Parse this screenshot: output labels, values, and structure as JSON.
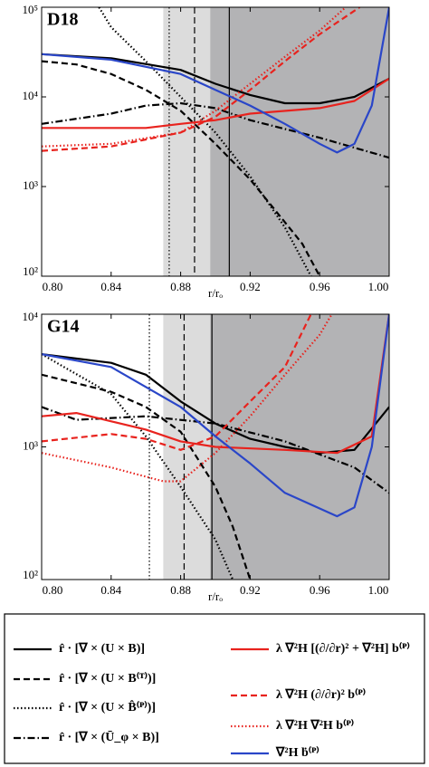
{
  "chart_data": [
    {
      "type": "line",
      "label": "D18",
      "xlabel": "r/rₒ",
      "log_y": true,
      "xlim": [
        0.8,
        1.0
      ],
      "ylim": [
        100,
        100000
      ],
      "xticks": [
        {
          "value": 0.8,
          "label": "0.80"
        },
        {
          "value": 0.84,
          "label": "0.84"
        },
        {
          "value": 0.88,
          "label": "0.88"
        },
        {
          "value": 0.92,
          "label": "0.92"
        },
        {
          "value": 0.96,
          "label": "0.96"
        },
        {
          "value": 1.0,
          "label": "1.00"
        }
      ],
      "yticks": [
        {
          "value": 100,
          "label": "10²"
        },
        {
          "value": 1000,
          "label": "10³"
        },
        {
          "value": 10000,
          "label": "10⁴"
        },
        {
          "value": 100000,
          "label": "10⁵"
        }
      ],
      "regions": [
        {
          "from": 0.87,
          "to": 0.897,
          "color": "#dcdcdc"
        },
        {
          "from": 0.897,
          "to": 1.0,
          "color": "#b3b3b5"
        }
      ],
      "vlines": [
        {
          "x": 0.8734,
          "style": "dotted"
        },
        {
          "x": 0.888,
          "style": "dashed"
        },
        {
          "x": 0.908,
          "style": "solid"
        }
      ],
      "series": [
        {
          "name": "r̂ · [∇ × (U × B)]",
          "style": "solid",
          "color": "#000000",
          "x": [
            0.8,
            0.84,
            0.88,
            0.9,
            0.92,
            0.94,
            0.96,
            0.98,
            1.0
          ],
          "values": [
            30000,
            27000,
            20000,
            14000,
            10500,
            8500,
            8500,
            10000,
            16000
          ]
        },
        {
          "name": "r̂ · [∇ × (U × B⁽ᵀ⁾)]",
          "style": "dashed",
          "color": "#000000",
          "x": [
            0.8,
            0.82,
            0.84,
            0.86,
            0.88,
            0.9,
            0.92,
            0.94,
            0.95,
            0.96
          ],
          "values": [
            25000,
            23000,
            18000,
            12000,
            7000,
            3000,
            1200,
            400,
            230,
            100
          ]
        },
        {
          "name": "r̂ · [∇ × (U × B̂⁽ᴾ⁾)]",
          "style": "dotted",
          "color": "#000000",
          "x": [
            0.833,
            0.84,
            0.86,
            0.88,
            0.9,
            0.92,
            0.94,
            0.955
          ],
          "values": [
            100000,
            60000,
            25000,
            10000,
            4000,
            1300,
            350,
            100
          ]
        },
        {
          "name": "r̂ · [∇ × (Ū_φ × B)]",
          "style": "dashdot",
          "color": "#000000",
          "x": [
            0.8,
            0.84,
            0.86,
            0.88,
            0.9,
            0.92,
            0.96,
            1.0
          ],
          "values": [
            5000,
            6500,
            8000,
            8500,
            7500,
            5500,
            3500,
            2100
          ]
        },
        {
          "name": "λ ∇²H [(∂/∂r)² + ∇²H] b⁽ᴾ⁾",
          "style": "solid",
          "color": "#e8231e",
          "x": [
            0.8,
            0.86,
            0.88,
            0.9,
            0.92,
            0.96,
            0.98,
            1.0
          ],
          "values": [
            4500,
            4500,
            5000,
            5500,
            6500,
            7500,
            9000,
            16000
          ]
        },
        {
          "name": "λ ∇²H (∂/∂r)² b⁽ᴾ⁾",
          "style": "dashed",
          "color": "#e8231e",
          "x": [
            0.8,
            0.84,
            0.88,
            0.9,
            0.92,
            0.94,
            0.96,
            0.983
          ],
          "values": [
            2500,
            2800,
            4000,
            6000,
            12000,
            25000,
            50000,
            100000
          ]
        },
        {
          "name": "λ ∇²H ∇²H b⁽ᴾ⁾",
          "style": "dotted",
          "color": "#e8231e",
          "x": [
            0.8,
            0.84,
            0.88,
            0.9,
            0.92,
            0.94,
            0.96,
            0.975
          ],
          "values": [
            2800,
            3000,
            4000,
            7000,
            14000,
            28000,
            55000,
            100000
          ]
        },
        {
          "name": "∇²H ḃ⁽ᴾ⁾",
          "style": "solid",
          "color": "#2a46c8",
          "x": [
            0.8,
            0.84,
            0.88,
            0.9,
            0.92,
            0.94,
            0.96,
            0.97,
            0.98,
            0.99,
            1.0
          ],
          "values": [
            30000,
            26000,
            18000,
            12000,
            8000,
            5000,
            3000,
            2400,
            3000,
            8000,
            100000
          ]
        }
      ]
    },
    {
      "type": "line",
      "label": "G14",
      "xlabel": "r/rₒ",
      "log_y": true,
      "xlim": [
        0.8,
        1.0
      ],
      "ylim": [
        100,
        10000
      ],
      "xticks": [
        {
          "value": 0.8,
          "label": "0.80"
        },
        {
          "value": 0.84,
          "label": "0.84"
        },
        {
          "value": 0.88,
          "label": "0.88"
        },
        {
          "value": 0.92,
          "label": "0.92"
        },
        {
          "value": 0.96,
          "label": "0.96"
        },
        {
          "value": 1.0,
          "label": "1.00"
        }
      ],
      "yticks": [
        {
          "value": 100,
          "label": "10²"
        },
        {
          "value": 1000,
          "label": "10³"
        },
        {
          "value": 10000,
          "label": "10⁴"
        }
      ],
      "regions": [
        {
          "from": 0.87,
          "to": 0.897,
          "color": "#dcdcdc"
        },
        {
          "from": 0.897,
          "to": 1.0,
          "color": "#b3b3b5"
        }
      ],
      "vlines": [
        {
          "x": 0.862,
          "style": "dotted"
        },
        {
          "x": 0.882,
          "style": "dashed"
        },
        {
          "x": 0.898,
          "style": "solid"
        }
      ],
      "series": [
        {
          "style": "solid",
          "color": "#000000",
          "x": [
            0.8,
            0.84,
            0.86,
            0.88,
            0.9,
            0.92,
            0.94,
            0.96,
            0.98,
            1.0
          ],
          "values": [
            5000,
            4300,
            3500,
            2200,
            1500,
            1150,
            1000,
            900,
            950,
            2000
          ]
        },
        {
          "style": "dashed",
          "color": "#000000",
          "x": [
            0.8,
            0.84,
            0.86,
            0.88,
            0.9,
            0.91,
            0.92
          ],
          "values": [
            3500,
            2600,
            2000,
            1300,
            500,
            250,
            100
          ]
        },
        {
          "style": "dotted",
          "color": "#000000",
          "x": [
            0.8,
            0.84,
            0.86,
            0.88,
            0.9,
            0.91
          ],
          "values": [
            5000,
            2500,
            1200,
            500,
            200,
            100
          ]
        },
        {
          "style": "dashdot",
          "color": "#000000",
          "x": [
            0.8,
            0.82,
            0.86,
            0.9,
            0.94,
            0.98,
            1.0
          ],
          "values": [
            2000,
            1600,
            1700,
            1500,
            1100,
            700,
            450
          ]
        },
        {
          "style": "solid",
          "color": "#e8231e",
          "x": [
            0.8,
            0.82,
            0.86,
            0.88,
            0.9,
            0.94,
            0.97,
            0.99,
            1.0
          ],
          "values": [
            1700,
            1800,
            1350,
            1100,
            1000,
            950,
            900,
            1200,
            10000
          ]
        },
        {
          "style": "dashed",
          "color": "#e8231e",
          "x": [
            0.8,
            0.84,
            0.86,
            0.88,
            0.9,
            0.92,
            0.94,
            0.955
          ],
          "values": [
            1100,
            1250,
            1150,
            950,
            1200,
            2200,
            4000,
            10000
          ]
        },
        {
          "style": "dotted",
          "color": "#e8231e",
          "x": [
            0.8,
            0.84,
            0.87,
            0.88,
            0.9,
            0.92,
            0.94,
            0.96,
            0.967
          ],
          "values": [
            900,
            700,
            550,
            550,
            900,
            1700,
            3500,
            7000,
            10000
          ]
        },
        {
          "style": "solid",
          "color": "#2a46c8",
          "x": [
            0.8,
            0.84,
            0.88,
            0.9,
            0.92,
            0.94,
            0.97,
            0.98,
            0.99,
            1.0
          ],
          "values": [
            5000,
            4000,
            2000,
            1200,
            750,
            450,
            300,
            350,
            1000,
            10000
          ]
        }
      ]
    }
  ]
}
